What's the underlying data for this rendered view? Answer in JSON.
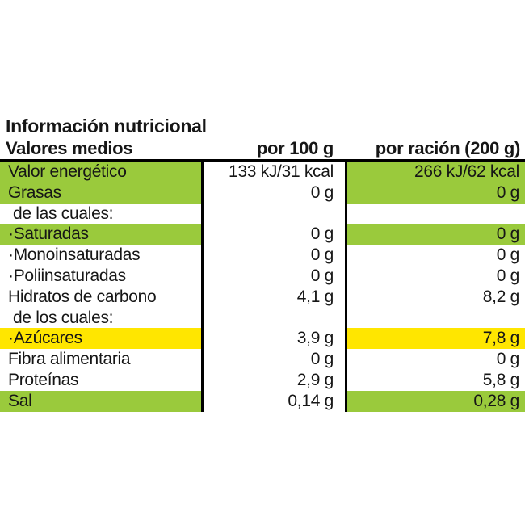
{
  "title": "Información nutricional",
  "colors": {
    "highlight_green": "#9aca3c",
    "highlight_yellow": "#ffe600",
    "rule_black": "#000000"
  },
  "table": {
    "headers": {
      "col1": "Valores medios",
      "col2": "por 100 g",
      "col3": "por ración (200 g)"
    },
    "rows": [
      {
        "label": "Valor energético",
        "per100": "133 kJ/31 kcal",
        "perRacion": "266 kJ/62 kcal",
        "highlight": "green",
        "indent": 0
      },
      {
        "label": "Grasas",
        "per100": "0 g",
        "perRacion": "0 g",
        "highlight": "green",
        "indent": 0
      },
      {
        "label": "de las cuales:",
        "per100": "",
        "perRacion": "",
        "highlight": "none",
        "indent": 1
      },
      {
        "label": "·Saturadas",
        "per100": "0 g",
        "perRacion": "0 g",
        "highlight": "green",
        "indent": 0
      },
      {
        "label": "·Monoinsaturadas",
        "per100": "0 g",
        "perRacion": "0 g",
        "highlight": "none",
        "indent": 0
      },
      {
        "label": "·Poliinsaturadas",
        "per100": "0 g",
        "perRacion": "0 g",
        "highlight": "none",
        "indent": 0
      },
      {
        "label": "Hidratos de carbono",
        "per100": "4,1 g",
        "perRacion": "8,2 g",
        "highlight": "none",
        "indent": 0
      },
      {
        "label": "de los cuales:",
        "per100": "",
        "perRacion": "",
        "highlight": "none",
        "indent": 1
      },
      {
        "label": "·Azúcares",
        "per100": "3,9 g",
        "perRacion": "7,8 g",
        "highlight": "yellow",
        "indent": 0
      },
      {
        "label": "Fibra alimentaria",
        "per100": "0 g",
        "perRacion": "0 g",
        "highlight": "none",
        "indent": 0
      },
      {
        "label": "Proteínas",
        "per100": "2,9 g",
        "perRacion": "5,8 g",
        "highlight": "none",
        "indent": 0
      },
      {
        "label": "Sal",
        "per100": "0,14 g",
        "perRacion": "0,28 g",
        "highlight": "green",
        "indent": 0
      }
    ]
  }
}
